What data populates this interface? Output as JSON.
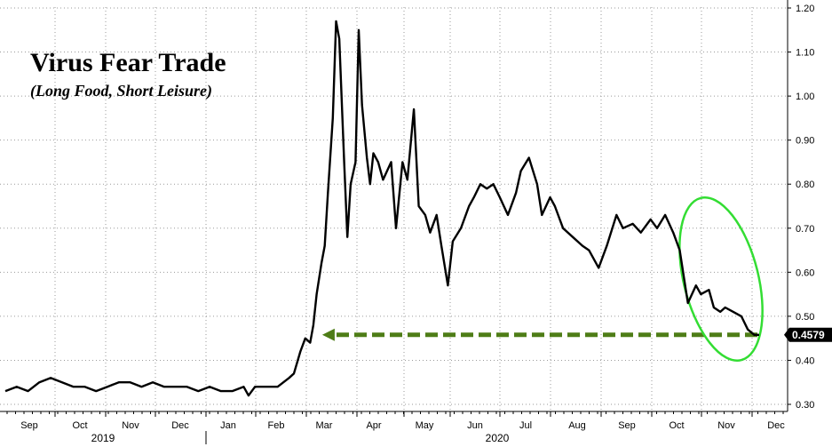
{
  "chart_data": {
    "type": "line",
    "title": "Virus Fear Trade",
    "subtitle": "(Long Food, Short Leisure)",
    "xlabel": "",
    "ylabel": "",
    "ylim": [
      0.28,
      1.22
    ],
    "y_ticks": [
      "0.30",
      "0.40",
      "0.50",
      "0.60",
      "0.70",
      "0.80",
      "0.90",
      "1.00",
      "1.10",
      "1.20"
    ],
    "x_month_labels": [
      "Sep",
      "Oct",
      "Nov",
      "Dec",
      "Jan",
      "Feb",
      "Mar",
      "Apr",
      "May",
      "Jun",
      "Jul",
      "Aug",
      "Sep",
      "Oct",
      "Nov",
      "Dec"
    ],
    "year_labels": [
      "2019",
      "2020"
    ],
    "grid": true,
    "last_value_label": "0.4579",
    "colors": {
      "line": "#000000",
      "arrow": "#4e7d17",
      "ellipse": "#33dd33",
      "label_bg": "#000000"
    },
    "series": [
      {
        "x": [
          "2019-08-20",
          "2019-08-27",
          "2019-09-03",
          "2019-09-10",
          "2019-09-17",
          "2019-09-24",
          "2019-10-01",
          "2019-10-08",
          "2019-10-15",
          "2019-10-22",
          "2019-10-29",
          "2019-11-05",
          "2019-11-12",
          "2019-11-19",
          "2019-11-26",
          "2019-12-03",
          "2019-12-10",
          "2019-12-17",
          "2019-12-24",
          "2019-12-31",
          "2020-01-07",
          "2020-01-14",
          "2020-01-17",
          "2020-01-21",
          "2020-01-28",
          "2020-02-04",
          "2020-02-11",
          "2020-02-14",
          "2020-02-18",
          "2020-02-21",
          "2020-02-24",
          "2020-02-26",
          "2020-02-28",
          "2020-03-02",
          "2020-03-04",
          "2020-03-06",
          "2020-03-09",
          "2020-03-11",
          "2020-03-13",
          "2020-03-16",
          "2020-03-18",
          "2020-03-20",
          "2020-03-23",
          "2020-03-25",
          "2020-03-27",
          "2020-03-30",
          "2020-04-01",
          "2020-04-03",
          "2020-04-06",
          "2020-04-09",
          "2020-04-14",
          "2020-04-17",
          "2020-04-21",
          "2020-04-24",
          "2020-04-28",
          "2020-05-01",
          "2020-05-05",
          "2020-05-08",
          "2020-05-12",
          "2020-05-15",
          "2020-05-19",
          "2020-05-22",
          "2020-05-27",
          "2020-06-01",
          "2020-06-04",
          "2020-06-08",
          "2020-06-12",
          "2020-06-16",
          "2020-06-20",
          "2020-06-25",
          "2020-06-30",
          "2020-07-03",
          "2020-07-08",
          "2020-07-13",
          "2020-07-16",
          "2020-07-21",
          "2020-07-24",
          "2020-07-29",
          "2020-08-04",
          "2020-08-10",
          "2020-08-14",
          "2020-08-20",
          "2020-08-25",
          "2020-08-31",
          "2020-09-04",
          "2020-09-10",
          "2020-09-15",
          "2020-09-21",
          "2020-09-25",
          "2020-09-30",
          "2020-10-05",
          "2020-10-09",
          "2020-10-14",
          "2020-10-19",
          "2020-10-22",
          "2020-10-27",
          "2020-10-30",
          "2020-11-03",
          "2020-11-06",
          "2020-11-11",
          "2020-11-16",
          "2020-11-20",
          "2020-11-24",
          "2020-11-27"
        ],
        "y": [
          0.33,
          0.34,
          0.33,
          0.35,
          0.36,
          0.35,
          0.34,
          0.34,
          0.33,
          0.34,
          0.35,
          0.35,
          0.34,
          0.35,
          0.34,
          0.34,
          0.34,
          0.33,
          0.34,
          0.33,
          0.33,
          0.34,
          0.32,
          0.34,
          0.34,
          0.34,
          0.36,
          0.37,
          0.42,
          0.45,
          0.44,
          0.48,
          0.55,
          0.62,
          0.66,
          0.78,
          0.95,
          1.17,
          1.13,
          0.85,
          0.68,
          0.8,
          0.85,
          1.15,
          0.98,
          0.86,
          0.8,
          0.87,
          0.85,
          0.81,
          0.85,
          0.7,
          0.85,
          0.81,
          0.97,
          0.75,
          0.73,
          0.69,
          0.73,
          0.66,
          0.57,
          0.67,
          0.7,
          0.75,
          0.77,
          0.8,
          0.79,
          0.8,
          0.77,
          0.73,
          0.78,
          0.83,
          0.86,
          0.8,
          0.73,
          0.77,
          0.75,
          0.7,
          0.68,
          0.66,
          0.65,
          0.61,
          0.66,
          0.73,
          0.7,
          0.71,
          0.69,
          0.72,
          0.7,
          0.73,
          0.69,
          0.65,
          0.53,
          0.57,
          0.55,
          0.56,
          0.52,
          0.51,
          0.52,
          0.51,
          0.5,
          0.47,
          0.4579,
          0.4579
        ]
      }
    ]
  }
}
